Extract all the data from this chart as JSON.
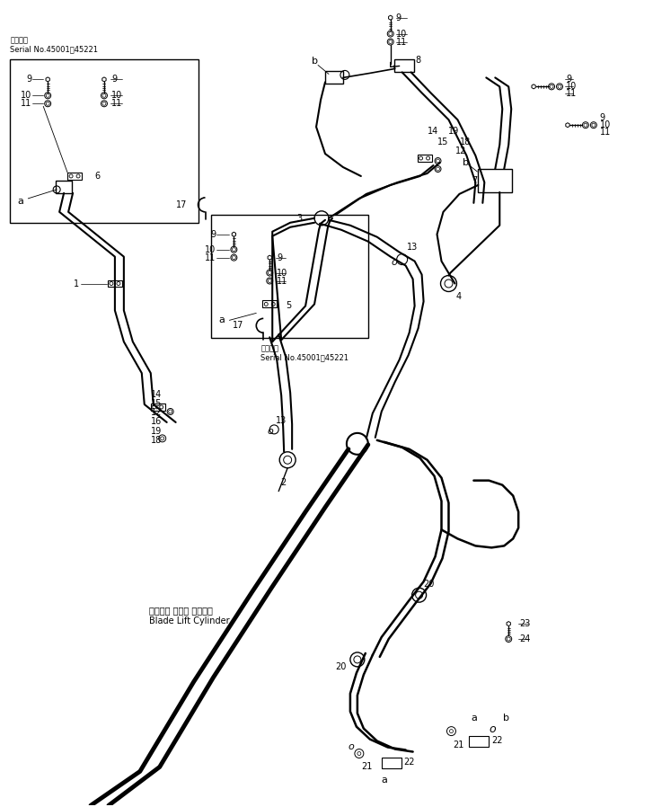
{
  "background_color": "#ffffff",
  "fig_width": 7.27,
  "fig_height": 8.98,
  "dpi": 100,
  "serial_label_1_line1": "適用号機",
  "serial_label_1_line2": "Serial No.45001～45221",
  "serial_label_2_line1": "適用号機",
  "serial_label_2_line2": "Serial No.45001～45221",
  "blade_lift_line1": "ブレード リフト シリンダ",
  "blade_lift_line2": "Blade Lift Cylinder",
  "lw_pipe": 2.0,
  "lw_thin": 0.8,
  "lw_med": 1.2,
  "fs_label": 7,
  "fs_small": 6,
  "fs_letter": 8
}
